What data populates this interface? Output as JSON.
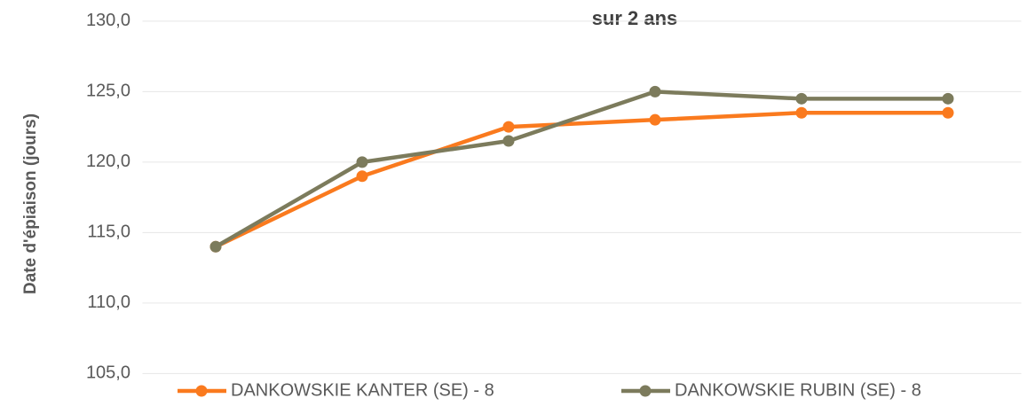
{
  "chart_data": {
    "type": "line",
    "title": "sur 2 ans",
    "y_label": "Date d'épiaison (jours)",
    "categories": [
      null,
      null,
      null,
      null,
      null,
      null
    ],
    "series": [
      {
        "name": "DANKOWSKIE KANTER (SE) - 8",
        "color": "#fa7a1e",
        "values": [
          114,
          119,
          122.5,
          123,
          123.5,
          123.5
        ]
      },
      {
        "name": "DANKOWSKIE RUBIN (SE) - 8",
        "color": "#7c7b5c",
        "values": [
          114,
          120,
          121.5,
          125,
          124.5,
          124.5
        ]
      }
    ],
    "ylim": [
      102.7,
      131.5
    ],
    "yticks": [
      {
        "value": 105,
        "label": "105,0"
      },
      {
        "value": 110,
        "label": "110,0"
      },
      {
        "value": 115,
        "label": "115,0"
      },
      {
        "value": 120,
        "label": "120,0"
      },
      {
        "value": 125,
        "label": "125,0"
      },
      {
        "value": 130,
        "label": "130,0"
      }
    ],
    "grid": true,
    "legend": "bottom"
  }
}
